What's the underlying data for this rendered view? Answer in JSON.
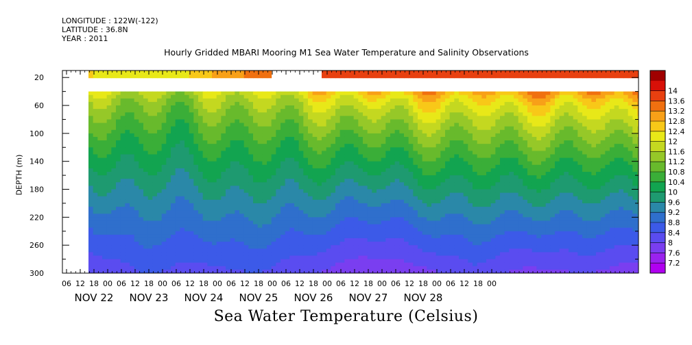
{
  "meta": {
    "longitude": "LONGITUDE : 122W(-122)",
    "latitude": "LATITUDE : 36.8N",
    "year": "YEAR : 2011"
  },
  "title": "Hourly Gridded MBARI Mooring M1 Sea Water Temperature and Salinity Observations",
  "bottom_title": "Sea Water Temperature (Celsius)",
  "chart_data": {
    "type": "heatmap",
    "title": "Hourly Gridded MBARI Mooring M1 Sea Water Temperature and Salinity Observations",
    "xlabel": "",
    "ylabel": "DEPTH (m)",
    "colorbar_label": "Sea Water Temperature (Celsius)",
    "y_inverted": true,
    "ylim": [
      300,
      0
    ],
    "y_ticks": [
      20,
      60,
      100,
      140,
      180,
      220,
      260,
      300
    ],
    "x_hour_ticks": [
      "06",
      "12",
      "18",
      "00",
      "06",
      "12",
      "18",
      "00",
      "06",
      "12",
      "18",
      "00",
      "06",
      "12",
      "18",
      "00",
      "06",
      "12",
      "18",
      "00",
      "06",
      "12",
      "18",
      "00",
      "06",
      "12",
      "18",
      "00",
      "06",
      "12",
      "18",
      "00"
    ],
    "x_day_labels": [
      "NOV 22",
      "NOV 23",
      "NOV 24",
      "NOV 25",
      "NOV 26",
      "NOV 27",
      "NOV 28"
    ],
    "colorbar_levels": [
      7.2,
      7.6,
      8,
      8.4,
      8.8,
      9.2,
      9.6,
      10,
      10.4,
      10.8,
      11.2,
      11.6,
      12,
      12.4,
      12.8,
      13.2,
      13.6,
      14
    ],
    "colorbar_colors": [
      "#b000f0",
      "#9a22ee",
      "#7a3ef0",
      "#5a4cf0",
      "#3c5ae8",
      "#2f6fcc",
      "#2a88a8",
      "#1e9a70",
      "#12a450",
      "#3aae38",
      "#68ba2c",
      "#96c828",
      "#c4d820",
      "#e8e818",
      "#f8c818",
      "#f8a018",
      "#f07010",
      "#e84010",
      "#d81008",
      "#a00000"
    ],
    "surface_values": [
      {
        "hour": 0,
        "temp": 12.4
      },
      {
        "hour": 36,
        "temp": 12.2
      },
      {
        "hour": 60,
        "temp": 13.0
      },
      {
        "hour": 80,
        "temp": 13.6
      },
      {
        "hour": 107,
        "temp": 14.0
      },
      {
        "hour": 170,
        "temp": 13.9
      },
      {
        "hour": 246,
        "temp": 13.8
      }
    ],
    "surface_gap_hours": [
      80,
      102
    ],
    "profile_start_depth": 40,
    "time_range_hours": [
      0,
      246
    ],
    "thermocline": [
      {
        "hour": 0,
        "warm": 11.8,
        "deep": 8.0
      },
      {
        "hour": 24,
        "warm": 11.6,
        "deep": 8.4
      },
      {
        "hour": 48,
        "warm": 11.7,
        "deep": 8.2
      },
      {
        "hour": 72,
        "warm": 12.0,
        "deep": 8.4
      },
      {
        "hour": 96,
        "warm": 12.3,
        "deep": 8.0
      },
      {
        "hour": 120,
        "warm": 12.6,
        "deep": 7.6
      },
      {
        "hour": 144,
        "warm": 12.8,
        "deep": 7.8
      },
      {
        "hour": 168,
        "warm": 12.8,
        "deep": 8.2
      },
      {
        "hour": 192,
        "warm": 13.0,
        "deep": 7.8
      },
      {
        "hour": 216,
        "warm": 13.0,
        "deep": 8.0
      },
      {
        "hour": 246,
        "warm": 13.2,
        "deep": 7.6
      }
    ]
  }
}
